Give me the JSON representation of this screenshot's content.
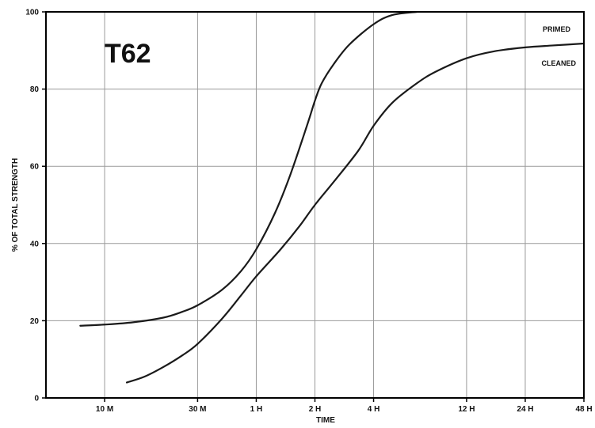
{
  "chart_data": {
    "type": "line",
    "title": "T62",
    "xlabel": "TIME",
    "ylabel": "% OF TOTAL STRENGTH",
    "x_scale": "log",
    "x_unit": "minutes",
    "xlim": [
      5,
      2880
    ],
    "ylim": [
      0,
      100
    ],
    "x_ticks": [
      {
        "label": "10 M",
        "value": 10
      },
      {
        "label": "30 M",
        "value": 30
      },
      {
        "label": "1 H",
        "value": 60
      },
      {
        "label": "2 H",
        "value": 120
      },
      {
        "label": "4 H",
        "value": 240
      },
      {
        "label": "12 H",
        "value": 720
      },
      {
        "label": "24 H",
        "value": 1440
      },
      {
        "label": "48 H",
        "value": 2880
      }
    ],
    "y_ticks": [
      0,
      20,
      40,
      60,
      80,
      100
    ],
    "grid": true,
    "series": [
      {
        "name": "PRIMED",
        "points": [
          [
            7.5,
            18.7
          ],
          [
            10,
            19
          ],
          [
            14,
            19.6
          ],
          [
            20,
            20.8
          ],
          [
            25,
            22.3
          ],
          [
            30,
            24
          ],
          [
            40,
            28
          ],
          [
            50,
            32.8
          ],
          [
            60,
            38.5
          ],
          [
            75,
            48
          ],
          [
            90,
            58
          ],
          [
            110,
            71
          ],
          [
            120,
            77
          ],
          [
            130,
            81.5
          ],
          [
            150,
            86.5
          ],
          [
            180,
            91.5
          ],
          [
            240,
            96.8
          ],
          [
            300,
            99.2
          ],
          [
            400,
            100
          ]
        ]
      },
      {
        "name": "CLEANED",
        "points": [
          [
            13,
            4
          ],
          [
            16,
            5.5
          ],
          [
            20,
            8
          ],
          [
            25,
            11
          ],
          [
            30,
            14
          ],
          [
            40,
            20.5
          ],
          [
            50,
            26.5
          ],
          [
            60,
            31.5
          ],
          [
            80,
            38.5
          ],
          [
            100,
            44.5
          ],
          [
            120,
            50
          ],
          [
            150,
            56
          ],
          [
            200,
            64
          ],
          [
            240,
            70.5
          ],
          [
            300,
            76.5
          ],
          [
            400,
            81.5
          ],
          [
            500,
            84.5
          ],
          [
            720,
            88
          ],
          [
            1000,
            89.8
          ],
          [
            1440,
            90.8
          ],
          [
            2000,
            91.3
          ],
          [
            2880,
            91.8
          ]
        ]
      }
    ]
  }
}
